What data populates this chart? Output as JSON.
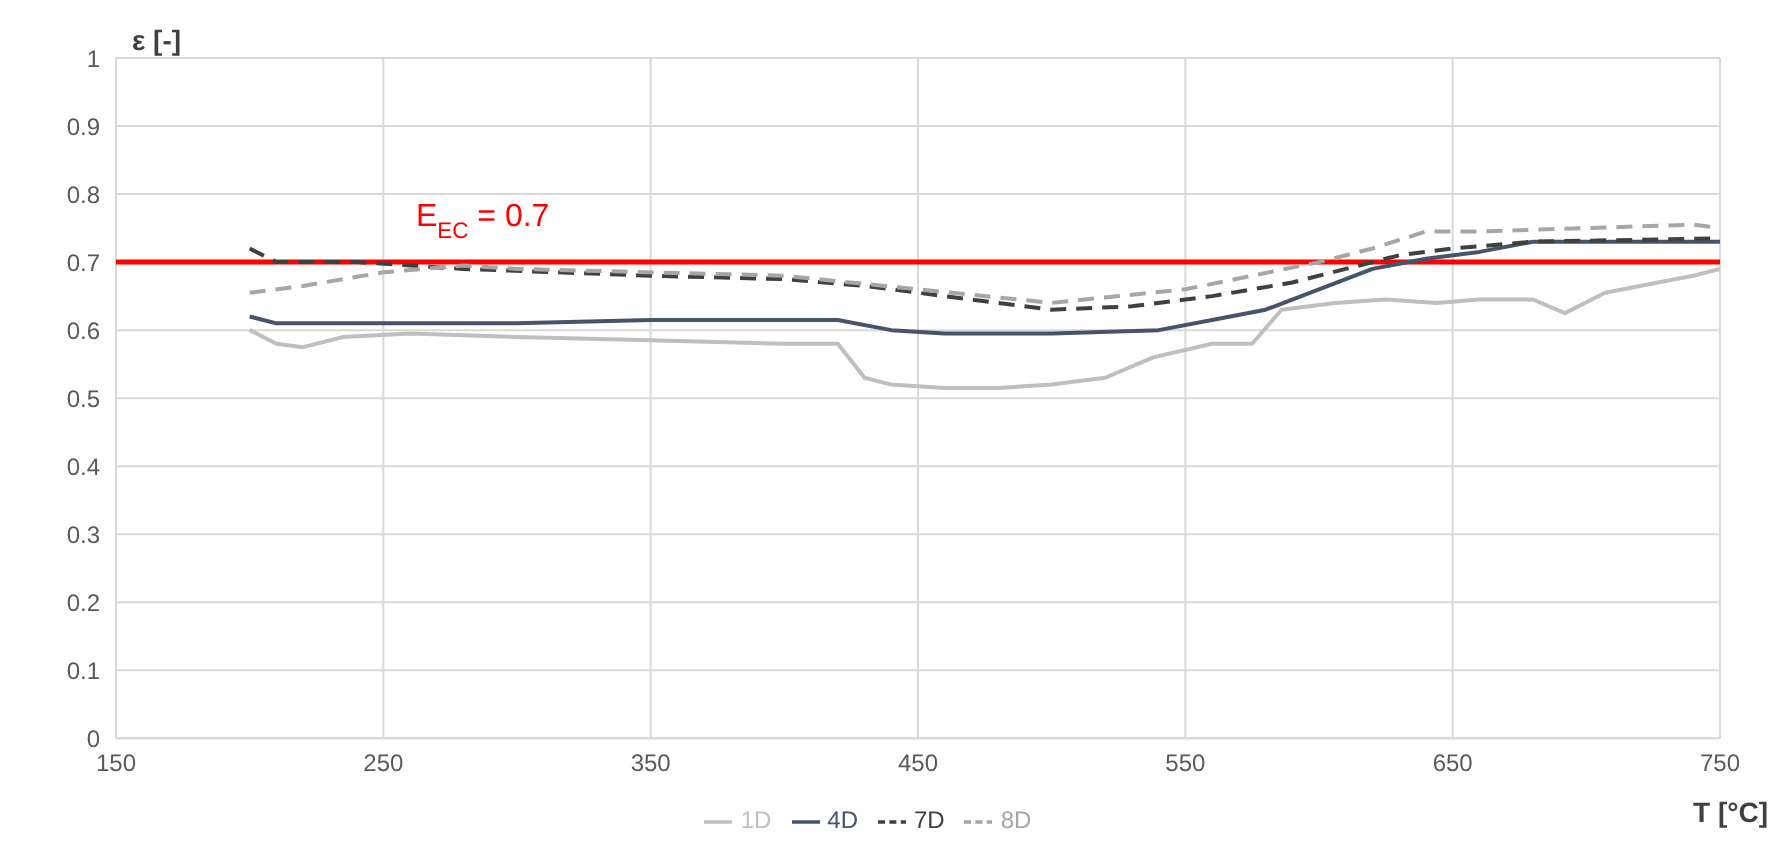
{
  "chart_data": {
    "type": "line",
    "xlabel": "T [°C]",
    "ylabel": "ε [-]",
    "xlim": [
      150,
      750
    ],
    "xticks": [
      150,
      250,
      350,
      450,
      550,
      650,
      750
    ],
    "ylim": [
      0,
      1
    ],
    "yticks": [
      0,
      0.1,
      0.2,
      0.3,
      0.4,
      0.5,
      0.6,
      0.7,
      0.8,
      0.9,
      1
    ],
    "grid": true,
    "legend": "bottom",
    "marker": "none",
    "ref_lines": [
      {
        "axis": "y",
        "value": 0.7,
        "label": "E$_{EC}$ = 0.7",
        "color": "#ff0000",
        "line_style": "solid"
      }
    ],
    "series": [
      {
        "name": "1D",
        "color": "#bfbfbf",
        "line_style": "solid",
        "x": [
          200,
          210,
          220,
          235,
          260,
          300,
          350,
          400,
          420,
          430,
          440,
          460,
          480,
          500,
          520,
          538,
          560,
          575,
          586,
          606,
          625,
          644,
          660,
          680,
          692,
          707,
          720,
          740,
          750
        ],
        "values": [
          0.6,
          0.58,
          0.575,
          0.59,
          0.595,
          0.59,
          0.585,
          0.58,
          0.58,
          0.53,
          0.52,
          0.515,
          0.515,
          0.52,
          0.53,
          0.56,
          0.58,
          0.58,
          0.63,
          0.64,
          0.645,
          0.64,
          0.645,
          0.645,
          0.625,
          0.655,
          0.665,
          0.68,
          0.69
        ]
      },
      {
        "name": "4D",
        "color": "#44546a",
        "line_style": "solid",
        "x": [
          200,
          210,
          250,
          300,
          350,
          400,
          420,
          440,
          460,
          500,
          540,
          560,
          580,
          600,
          620,
          640,
          660,
          680,
          750
        ],
        "values": [
          0.62,
          0.61,
          0.61,
          0.61,
          0.615,
          0.615,
          0.615,
          0.6,
          0.595,
          0.595,
          0.6,
          0.615,
          0.63,
          0.66,
          0.69,
          0.705,
          0.715,
          0.73,
          0.73
        ]
      },
      {
        "name": "7D",
        "color": "#404040",
        "line_style": "dashed",
        "x": [
          200,
          210,
          240,
          280,
          350,
          400,
          430,
          460,
          500,
          530,
          560,
          590,
          610,
          630,
          650,
          680,
          750
        ],
        "values": [
          0.72,
          0.7,
          0.7,
          0.69,
          0.68,
          0.675,
          0.665,
          0.65,
          0.63,
          0.635,
          0.65,
          0.67,
          0.69,
          0.71,
          0.72,
          0.73,
          0.735
        ]
      },
      {
        "name": "8D",
        "color": "#a6a6a6",
        "line_style": "dashed",
        "x": [
          200,
          220,
          250,
          280,
          300,
          400,
          450,
          500,
          550,
          600,
          620,
          640,
          660,
          700,
          740,
          750
        ],
        "values": [
          0.655,
          0.665,
          0.685,
          0.695,
          0.69,
          0.68,
          0.66,
          0.64,
          0.66,
          0.7,
          0.72,
          0.745,
          0.745,
          0.75,
          0.755,
          0.75
        ]
      }
    ]
  }
}
